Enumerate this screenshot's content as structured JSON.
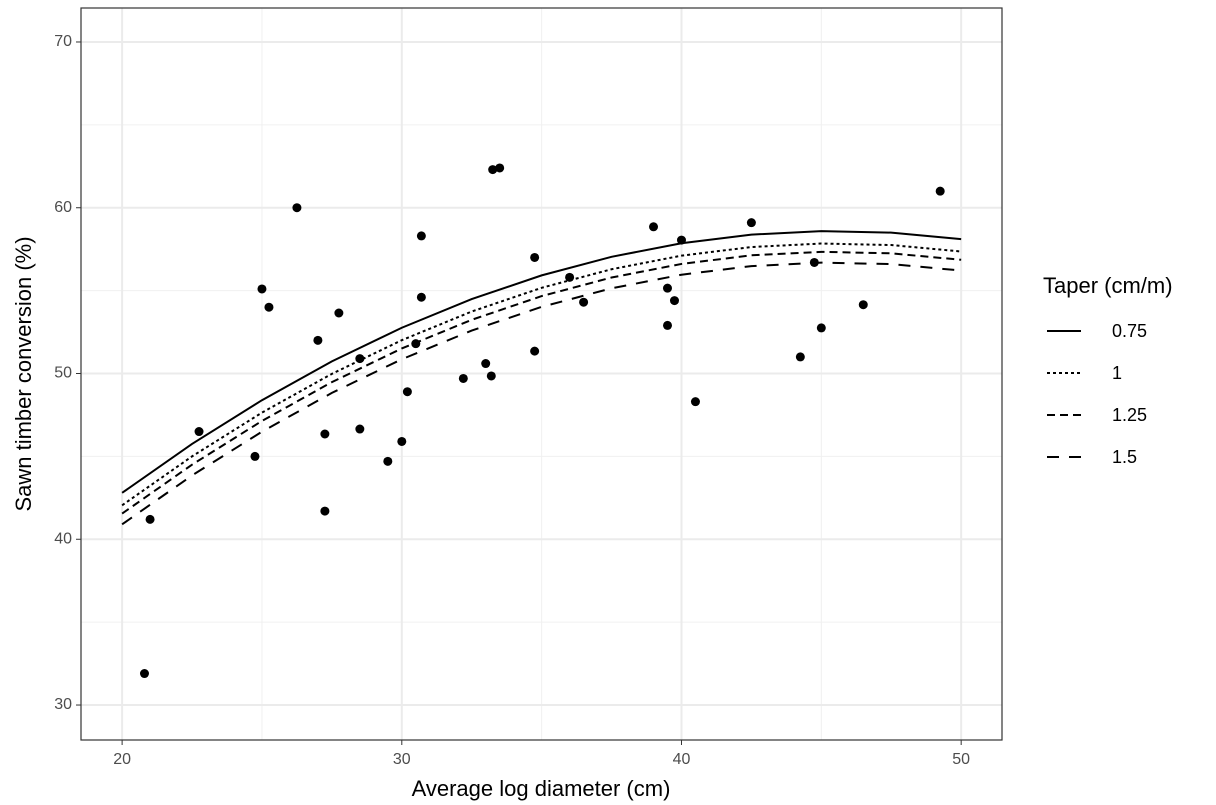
{
  "chart_data": {
    "type": "scatter",
    "x_label": "Average log diameter (cm)",
    "y_label": "Sawn timber conversion (%)",
    "xlim": [
      18.53,
      51.46
    ],
    "ylim": [
      27.89,
      72.05
    ],
    "xticks": [
      20,
      30,
      40,
      50
    ],
    "yticks": [
      30,
      40,
      50,
      60,
      70
    ],
    "grid": true,
    "legend": "right",
    "legend_title": "Taper (cm/m)",
    "point_color": "#000000",
    "points": {
      "x": [
        20.8,
        21.0,
        22.75,
        24.75,
        25.0,
        25.25,
        26.25,
        27.0,
        27.25,
        27.25,
        27.75,
        28.5,
        28.5,
        29.5,
        30.0,
        30.2,
        30.5,
        30.7,
        30.7,
        32.2,
        33.0,
        33.2,
        33.25,
        33.5,
        34.75,
        34.75,
        36.0,
        36.5,
        39.0,
        39.5,
        39.5,
        39.75,
        40.0,
        40.5,
        42.5,
        44.25,
        44.75,
        45.0,
        46.5,
        49.25
      ],
      "y": [
        31.9,
        41.2,
        46.5,
        45.0,
        55.1,
        54.0,
        60.0,
        52.0,
        46.35,
        41.7,
        53.65,
        50.9,
        46.65,
        44.7,
        45.9,
        48.9,
        51.8,
        58.3,
        54.6,
        49.7,
        50.6,
        49.85,
        62.3,
        62.4,
        57.0,
        51.35,
        55.8,
        54.3,
        58.85,
        55.15,
        52.9,
        54.4,
        58.05,
        48.3,
        59.1,
        51.0,
        56.7,
        52.75,
        54.15,
        61.0
      ]
    },
    "x": [
      20,
      22.5,
      25,
      27.5,
      30,
      32.5,
      35,
      37.5,
      40,
      42.5,
      45,
      47.5,
      50
    ],
    "series": [
      {
        "name": "0.75",
        "color": "#000000",
        "dash": "solid",
        "values": [
          42.8,
          45.75,
          48.39,
          50.73,
          52.76,
          54.49,
          55.92,
          57.04,
          57.86,
          58.38,
          58.59,
          58.5,
          58.11
        ]
      },
      {
        "name": "1",
        "color": "#000000",
        "dash": "dotted",
        "values": [
          42.05,
          45.0,
          47.64,
          49.98,
          52.01,
          53.74,
          55.17,
          56.29,
          57.11,
          57.63,
          57.84,
          57.75,
          57.36
        ]
      },
      {
        "name": "1.25",
        "color": "#000000",
        "dash": "dashed",
        "values": [
          41.55,
          44.5,
          47.14,
          49.48,
          51.51,
          53.24,
          54.67,
          55.79,
          56.61,
          57.13,
          57.34,
          57.25,
          56.86
        ]
      },
      {
        "name": "1.5",
        "color": "#000000",
        "dash": "longdash",
        "values": [
          40.9,
          43.85,
          46.49,
          48.83,
          50.86,
          52.59,
          54.02,
          55.14,
          55.96,
          56.48,
          56.69,
          56.6,
          56.21
        ]
      }
    ]
  }
}
